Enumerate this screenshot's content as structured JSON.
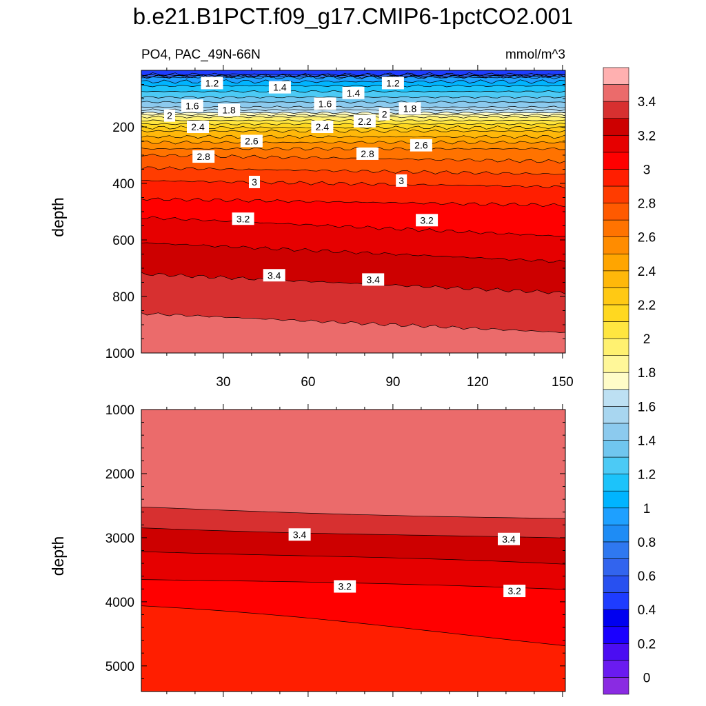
{
  "figure": {
    "title": "b.e21.B1PCT.f09_g17.CMIP6-1pctCO2.001",
    "left_string": "PO4, PAC_49N-66N",
    "right_string": "mmol/m^3"
  },
  "chart_data": [
    {
      "type": "heatmap",
      "panel": "upper",
      "ylabel": "depth",
      "ylim": [
        1000,
        0
      ],
      "yticks": [
        200,
        400,
        600,
        800,
        1000
      ],
      "xlim": [
        1,
        151
      ],
      "xticks": [
        30,
        60,
        90,
        120,
        150
      ],
      "contour_levels": {
        "min": 0,
        "max": 3.5,
        "step": 0.1
      },
      "depth_of_contour": [
        {
          "level": 1.0,
          "depth": 25
        },
        {
          "level": 1.2,
          "depth": 55
        },
        {
          "level": 1.4,
          "depth": 95
        },
        {
          "level": 1.6,
          "depth": 130
        },
        {
          "level": 1.8,
          "depth": 150
        },
        {
          "level": 2.0,
          "depth": 165
        },
        {
          "level": 2.2,
          "depth": 190
        },
        {
          "level": 2.4,
          "depth": 215
        },
        {
          "level": 2.6,
          "depth": 255
        },
        {
          "level": 2.8,
          "depth": 300
        },
        {
          "level": 3.0,
          "depth": 390
        },
        {
          "level": 3.2,
          "depth": 520
        },
        {
          "level": 3.3,
          "depth": 610
        },
        {
          "level": 3.4,
          "depth": 720
        },
        {
          "level": 3.5,
          "depth": 860
        }
      ],
      "contour_labels": [
        {
          "text": "1.2",
          "x": 26,
          "depth": 45
        },
        {
          "text": "1.4",
          "x": 50,
          "depth": 60
        },
        {
          "text": "1.2",
          "x": 90,
          "depth": 45
        },
        {
          "text": "1.4",
          "x": 76,
          "depth": 80
        },
        {
          "text": "1.6",
          "x": 19,
          "depth": 125
        },
        {
          "text": "1.6",
          "x": 66,
          "depth": 118
        },
        {
          "text": "1.8",
          "x": 32,
          "depth": 140
        },
        {
          "text": "1.8",
          "x": 96,
          "depth": 135
        },
        {
          "text": "2",
          "x": 11,
          "depth": 160
        },
        {
          "text": "2",
          "x": 87,
          "depth": 155
        },
        {
          "text": "2.2",
          "x": 80,
          "depth": 180
        },
        {
          "text": "2.4",
          "x": 21,
          "depth": 200
        },
        {
          "text": "2.4",
          "x": 65,
          "depth": 200
        },
        {
          "text": "2.6",
          "x": 40,
          "depth": 250
        },
        {
          "text": "2.6",
          "x": 100,
          "depth": 265
        },
        {
          "text": "2.8",
          "x": 23,
          "depth": 305
        },
        {
          "text": "2.8",
          "x": 81,
          "depth": 295
        },
        {
          "text": "3",
          "x": 41,
          "depth": 395
        },
        {
          "text": "3",
          "x": 93,
          "depth": 390
        },
        {
          "text": "3.2",
          "x": 37,
          "depth": 525
        },
        {
          "text": "3.2",
          "x": 102,
          "depth": 530
        },
        {
          "text": "3.4",
          "x": 48,
          "depth": 725
        },
        {
          "text": "3.4",
          "x": 83,
          "depth": 740
        }
      ]
    },
    {
      "type": "heatmap",
      "panel": "lower",
      "ylabel": "depth",
      "ylim": [
        1000,
        5400
      ],
      "yticks": [
        1000,
        2000,
        3000,
        4000,
        5000
      ],
      "xlim": [
        1,
        151
      ],
      "contour_boundaries": [
        {
          "upper": 3.6,
          "lower": 3.5,
          "depth_x1": 2520,
          "depth_x151": 2700
        },
        {
          "upper": 3.5,
          "lower": 3.4,
          "depth_x1": 2820,
          "depth_x151": 3030
        },
        {
          "upper": 3.4,
          "lower": 3.3,
          "depth_x1": 3180,
          "depth_x151": 3450
        },
        {
          "upper": 3.3,
          "lower": 3.2,
          "depth_x1": 3650,
          "depth_x151": 3810
        },
        {
          "upper": 3.2,
          "lower": 3.1,
          "depth_x1": 4120,
          "depth_x151": 4630
        }
      ],
      "contour_labels": [
        {
          "text": "3.4",
          "x": 57,
          "depth": 2950
        },
        {
          "text": "3.4",
          "x": 131,
          "depth": 3020
        },
        {
          "text": "3.2",
          "x": 73,
          "depth": 3760
        },
        {
          "text": "3.2",
          "x": 133,
          "depth": 3830
        }
      ]
    }
  ],
  "colorbar": {
    "tick_labels": [
      "0",
      "0.2",
      "0.4",
      "0.6",
      "0.8",
      "1",
      "1.2",
      "1.4",
      "1.6",
      "1.8",
      "2",
      "2.2",
      "2.4",
      "2.6",
      "2.8",
      "3",
      "3.2",
      "3.4"
    ],
    "colors": [
      "#8a2be2",
      "#6a1bf0",
      "#4b0df2",
      "#1a00ff",
      "#0000f0",
      "#1e3cff",
      "#2850f0",
      "#3264ee",
      "#2f78f0",
      "#1e8cf5",
      "#1ea0ff",
      "#00b4ff",
      "#1cc3fa",
      "#4ccaf5",
      "#70c6ef",
      "#8ccaee",
      "#a8d6f0",
      "#bde0f3",
      "#fffcc8",
      "#fff799",
      "#fff170",
      "#ffe640",
      "#ffd820",
      "#ffc914",
      "#ffb80a",
      "#ffa500",
      "#ff8c00",
      "#ff7300",
      "#ff5a00",
      "#ff3c00",
      "#ff1e00",
      "#ff0000",
      "#e60000",
      "#cd0000",
      "#d73030",
      "#eb6b6b",
      "#ffb0b0"
    ]
  }
}
